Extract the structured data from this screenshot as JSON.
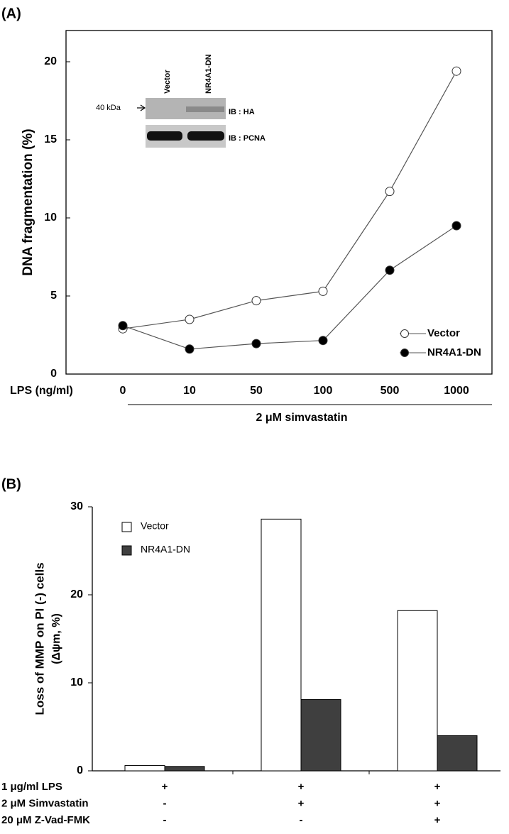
{
  "chart_data": [
    {
      "type": "line",
      "panel": "(A)",
      "ylabel": "DNA fragmentation (%)",
      "xlabel": "LPS (ng/ml)",
      "group_label": "2 μM simvastatin",
      "categories": [
        "0",
        "10",
        "50",
        "100",
        "500",
        "1000"
      ],
      "series": [
        {
          "name": "Vector",
          "color": "#ffffff",
          "values": [
            2.9,
            3.5,
            4.7,
            5.3,
            11.7,
            19.4
          ]
        },
        {
          "name": "NR4A1-DN",
          "color": "#000000",
          "values": [
            3.1,
            1.6,
            1.95,
            2.15,
            6.65,
            9.5
          ]
        }
      ],
      "ylim": [
        0,
        22
      ],
      "yticks": [
        0,
        5,
        10,
        15,
        20
      ],
      "legend": "lower right",
      "inset": {
        "lanes": [
          "Vector",
          "NR4A1-DN"
        ],
        "marker": "40 kDa",
        "blots": [
          "IB : HA",
          "IB : PCNA"
        ]
      }
    },
    {
      "type": "bar",
      "panel": "(B)",
      "ylabel": [
        "Loss of MMP on PI (-) cells",
        "(Δψm, %)"
      ],
      "conditions": [
        {
          "label": "1  μg/ml LPS",
          "signs": [
            "+",
            "+",
            "+"
          ]
        },
        {
          "label": "2 μM Simvastatin",
          "signs": [
            "-",
            "+",
            "+"
          ]
        },
        {
          "label": "20 μM Z-Vad-FMK",
          "signs": [
            "-",
            "-",
            "+"
          ]
        }
      ],
      "series": [
        {
          "name": "Vector",
          "color": "#ffffff",
          "values": [
            0.6,
            28.6,
            18.2
          ]
        },
        {
          "name": "NR4A1-DN",
          "color": "#3f3f3f",
          "values": [
            0.5,
            8.1,
            4.0
          ]
        }
      ],
      "ylim": [
        0,
        30
      ],
      "yticks": [
        0,
        10,
        20,
        30
      ],
      "legend": "upper left"
    }
  ]
}
